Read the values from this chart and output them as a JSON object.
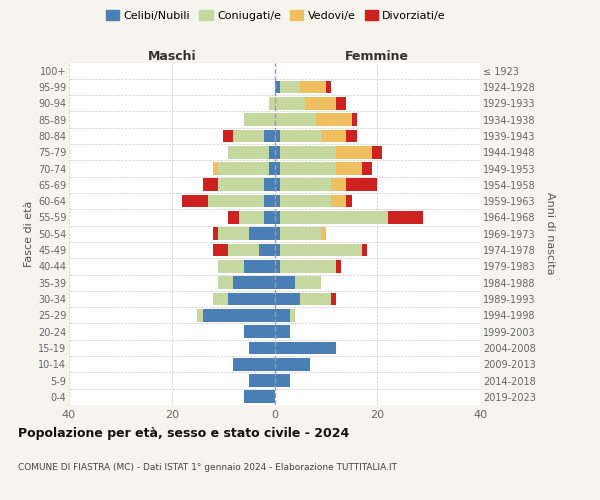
{
  "age_groups": [
    "0-4",
    "5-9",
    "10-14",
    "15-19",
    "20-24",
    "25-29",
    "30-34",
    "35-39",
    "40-44",
    "45-49",
    "50-54",
    "55-59",
    "60-64",
    "65-69",
    "70-74",
    "75-79",
    "80-84",
    "85-89",
    "90-94",
    "95-99",
    "100+"
  ],
  "birth_years": [
    "2019-2023",
    "2014-2018",
    "2009-2013",
    "2004-2008",
    "1999-2003",
    "1994-1998",
    "1989-1993",
    "1984-1988",
    "1979-1983",
    "1974-1978",
    "1969-1973",
    "1964-1968",
    "1959-1963",
    "1954-1958",
    "1949-1953",
    "1944-1948",
    "1939-1943",
    "1934-1938",
    "1929-1933",
    "1924-1928",
    "≤ 1923"
  ],
  "colors": {
    "celibi": "#4a7fb5",
    "coniugati": "#c5d8a0",
    "vedovi": "#f0c060",
    "divorziati": "#cc2222"
  },
  "maschi": {
    "celibi": [
      6,
      5,
      8,
      5,
      6,
      14,
      9,
      8,
      6,
      3,
      5,
      2,
      2,
      2,
      1,
      1,
      2,
      0,
      0,
      0,
      0
    ],
    "coniugati": [
      0,
      0,
      0,
      0,
      0,
      1,
      3,
      3,
      5,
      6,
      6,
      5,
      11,
      9,
      10,
      8,
      6,
      6,
      1,
      0,
      0
    ],
    "vedovi": [
      0,
      0,
      0,
      0,
      0,
      0,
      0,
      0,
      0,
      0,
      0,
      0,
      0,
      0,
      1,
      0,
      0,
      0,
      0,
      0,
      0
    ],
    "divorziati": [
      0,
      0,
      0,
      0,
      0,
      0,
      0,
      0,
      0,
      3,
      1,
      2,
      5,
      3,
      0,
      0,
      2,
      0,
      0,
      0,
      0
    ]
  },
  "femmine": {
    "celibi": [
      0,
      3,
      7,
      12,
      3,
      3,
      5,
      4,
      1,
      1,
      1,
      1,
      1,
      1,
      1,
      1,
      1,
      0,
      0,
      1,
      0
    ],
    "coniugati": [
      0,
      0,
      0,
      0,
      0,
      1,
      6,
      5,
      11,
      16,
      8,
      21,
      10,
      10,
      11,
      11,
      8,
      8,
      6,
      4,
      0
    ],
    "vedovi": [
      0,
      0,
      0,
      0,
      0,
      0,
      0,
      0,
      0,
      0,
      1,
      0,
      3,
      3,
      5,
      7,
      5,
      7,
      6,
      5,
      0
    ],
    "divorziati": [
      0,
      0,
      0,
      0,
      0,
      0,
      1,
      0,
      1,
      1,
      0,
      7,
      1,
      6,
      2,
      2,
      2,
      1,
      2,
      1,
      0
    ]
  },
  "xlim": 40,
  "title": "Popolazione per età, sesso e stato civile - 2024",
  "subtitle": "COMUNE DI FIASTRA (MC) - Dati ISTAT 1° gennaio 2024 - Elaborazione TUTTITALIA.IT",
  "xlabel_left": "Maschi",
  "xlabel_right": "Femmine",
  "ylabel_left": "Fasce di età",
  "ylabel_right": "Anni di nascita",
  "legend_labels": [
    "Celibi/Nubili",
    "Coniugati/e",
    "Vedovi/e",
    "Divorziati/e"
  ],
  "bg_color": "#f5f5ee",
  "plot_bg": "#ffffff",
  "grid_color": "#cccccc"
}
